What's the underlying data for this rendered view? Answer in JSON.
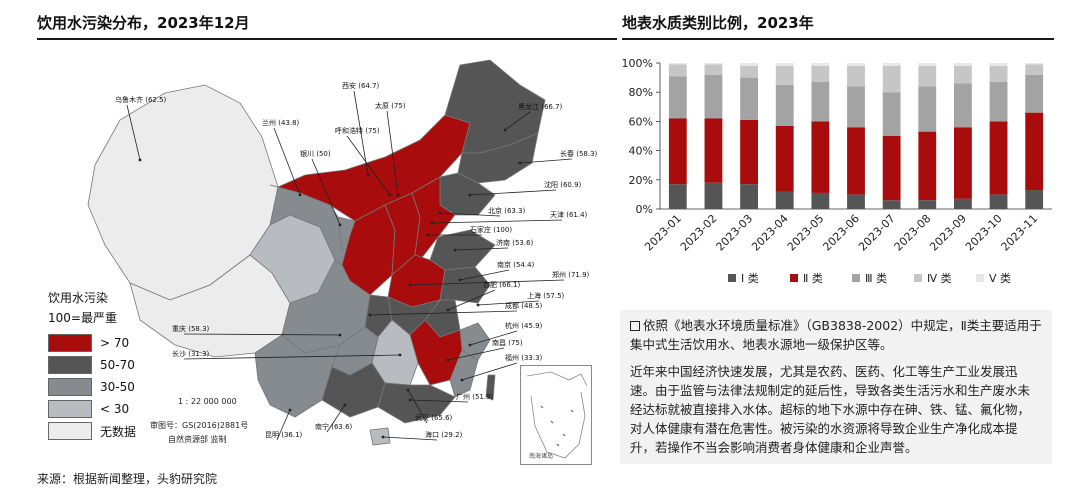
{
  "map_panel": {
    "title": "饮用水污染分布，2023年12月",
    "legend_title_line1": "饮用水污染",
    "legend_title_line2": "100=最严重",
    "legend": [
      {
        "label": "> 70",
        "color": "#a80c0c"
      },
      {
        "label": "50-70",
        "color": "#555555"
      },
      {
        "label": "30-50",
        "color": "#868b90"
      },
      {
        "label": "< 30",
        "color": "#b8bcc0"
      },
      {
        "label": "无数据",
        "color": "#ececec"
      }
    ],
    "scale_text": "1 : 22 000 000",
    "review_text_line1": "审图号：GS(2016)2881号",
    "review_text_line2": "自然资源部 监制",
    "inset_label": "南海诸岛",
    "cities": [
      {
        "label": "乌鲁木齐 (62.5)"
      },
      {
        "label": "西安 (64.7)"
      },
      {
        "label": "太原 (75)"
      },
      {
        "label": "黑龙江 (66.7)"
      },
      {
        "label": "兰州 (43.8)"
      },
      {
        "label": "呼和浩特 (75)"
      },
      {
        "label": "银川 (50)"
      },
      {
        "label": "长春 (58.3)"
      },
      {
        "label": "沈阳 (60.9)"
      },
      {
        "label": "北京 (63.3)"
      },
      {
        "label": "天津 (61.4)"
      },
      {
        "label": "石家庄 (100)"
      },
      {
        "label": "济南 (53.6)"
      },
      {
        "label": "南京 (54.4)"
      },
      {
        "label": "郑州 (71.9)"
      },
      {
        "label": "合肥 (66.1)"
      },
      {
        "label": "上海 (57.5)"
      },
      {
        "label": "成都 (48.5)"
      },
      {
        "label": "重庆 (58.3)"
      },
      {
        "label": "杭州 (45.9)"
      },
      {
        "label": "南昌 (75)"
      },
      {
        "label": "长沙 (31.3)"
      },
      {
        "label": "福州 (33.3)"
      },
      {
        "label": "广州 (51.9)"
      },
      {
        "label": "武汉 (65.6)"
      },
      {
        "label": "南宁 (63.6)"
      },
      {
        "label": "昆明 (36.1)"
      },
      {
        "label": "海口 (29.2)"
      }
    ]
  },
  "chart_panel": {
    "title": "地表水质类别比例，2023年"
  },
  "chart_data": {
    "type": "bar",
    "stacked": true,
    "categories": [
      "2023-01",
      "2023-02",
      "2023-03",
      "2023-04",
      "2023-05",
      "2023-06",
      "2023-07",
      "2023-08",
      "2023-09",
      "2023-10",
      "2023-11"
    ],
    "series": [
      {
        "name": "Ⅰ 类",
        "color": "#555555",
        "values": [
          17,
          18,
          17,
          12,
          11,
          10,
          6,
          6,
          7,
          10,
          13
        ]
      },
      {
        "name": "Ⅱ 类",
        "color": "#a80c0c",
        "values": [
          45,
          44,
          44,
          45,
          49,
          46,
          44,
          47,
          49,
          50,
          53
        ]
      },
      {
        "name": "Ⅲ 类",
        "color": "#a3a3a3",
        "values": [
          29,
          30,
          29,
          28,
          27,
          28,
          30,
          31,
          30,
          27,
          26
        ]
      },
      {
        "name": "Ⅳ 类",
        "color": "#c6c6c6",
        "values": [
          8,
          7,
          8,
          13,
          11,
          14,
          18,
          14,
          12,
          11,
          7
        ]
      },
      {
        "name": "Ⅴ 类",
        "color": "#e6e6e6",
        "values": [
          1,
          1,
          2,
          2,
          2,
          2,
          2,
          2,
          2,
          2,
          1
        ]
      }
    ],
    "yticks": [
      "0%",
      "20%",
      "40%",
      "60%",
      "80%",
      "100%"
    ],
    "ylim": [
      0,
      100
    ],
    "legend_position": "bottom"
  },
  "notes": {
    "paragraph1": "依照《地表水环境质量标准》（GB3838-2002）中规定，Ⅱ类主要适用于集中式生活饮用水、地表水源地一级保护区等。",
    "paragraph2": "近年来中国经济快速发展，尤其是农药、医药、化工等生产工业发展迅速。由于监管与法律法规制定的延后性，导致各类生活污水和生产废水未经达标就被直接排入水体。超标的地下水源中存在砷、铁、锰、氟化物，对人体健康有潜在危害性。被污染的水资源将导致企业生产净化成本提升，若操作不当会影响消费者身体健康和企业声誉。"
  },
  "source": "来源：根据新闻整理，头豹研究院"
}
